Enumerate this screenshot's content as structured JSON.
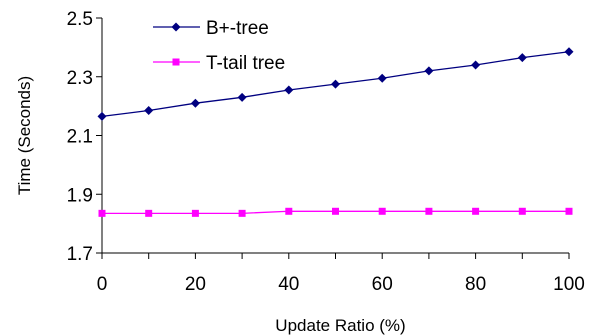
{
  "chart_data": {
    "type": "line",
    "title": "",
    "xlabel": "Update Ratio (%)",
    "ylabel": "Time (Seconds)",
    "xlim": [
      0,
      100
    ],
    "ylim": [
      1.7,
      2.5
    ],
    "x_ticks": [
      "0",
      "20",
      "40",
      "60",
      "80",
      "100"
    ],
    "y_ticks": [
      "1.7",
      "1.9",
      "2.1",
      "2.3",
      "2.5"
    ],
    "grid": false,
    "legend_position": "top-center",
    "x": [
      0,
      10,
      20,
      30,
      40,
      50,
      60,
      70,
      80,
      90,
      100
    ],
    "series": [
      {
        "name": "B+-tree",
        "color": "#000080",
        "marker": "diamond",
        "values": [
          2.165,
          2.185,
          2.21,
          2.23,
          2.255,
          2.275,
          2.295,
          2.32,
          2.34,
          2.365,
          2.385
        ]
      },
      {
        "name": "T-tail tree",
        "color": "#ff00ff",
        "marker": "square",
        "values": [
          1.835,
          1.835,
          1.835,
          1.835,
          1.842,
          1.842,
          1.842,
          1.842,
          1.842,
          1.842,
          1.842
        ]
      }
    ]
  }
}
